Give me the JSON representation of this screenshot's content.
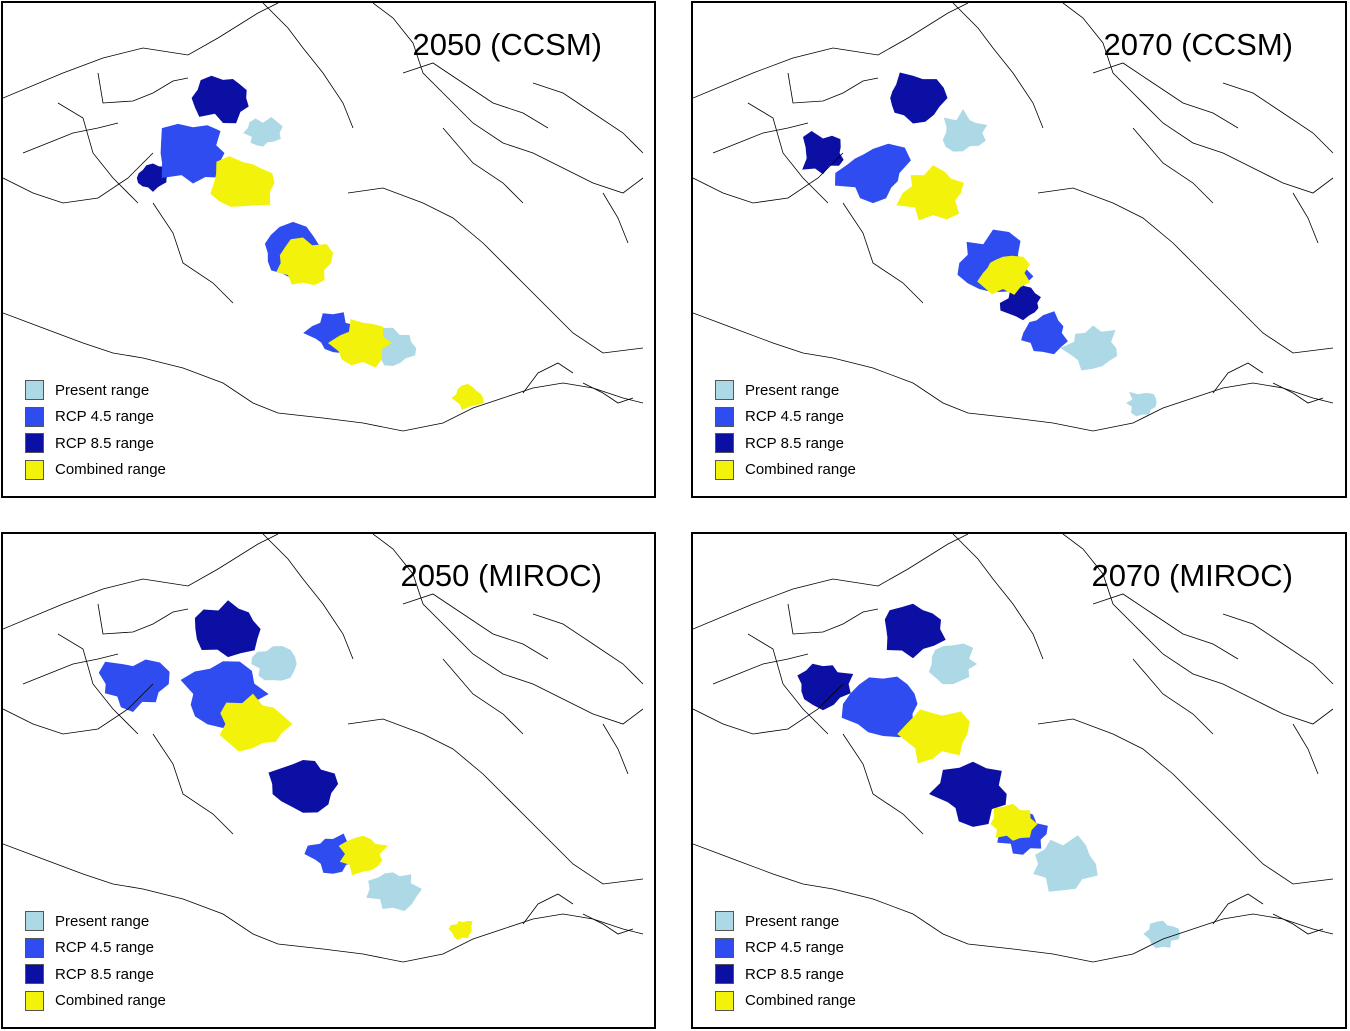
{
  "colors": {
    "present": "#add8e6",
    "rcp45": "#2f4cf0",
    "rcp85": "#0b0fa3",
    "combined": "#f2f20a",
    "boundary": "#000000"
  },
  "legend": [
    {
      "key": "present",
      "label": "Present range"
    },
    {
      "key": "rcp45",
      "label": "RCP 4.5 range"
    },
    {
      "key": "rcp85",
      "label": "RCP 8.5 range"
    },
    {
      "key": "combined",
      "label": "Combined range"
    }
  ],
  "panels": [
    {
      "title": "2050 (CCSM)"
    },
    {
      "title": "2070 (CCSM)"
    },
    {
      "title": "2050 (MIROC)"
    },
    {
      "title": "2070 (MIROC)"
    }
  ]
}
